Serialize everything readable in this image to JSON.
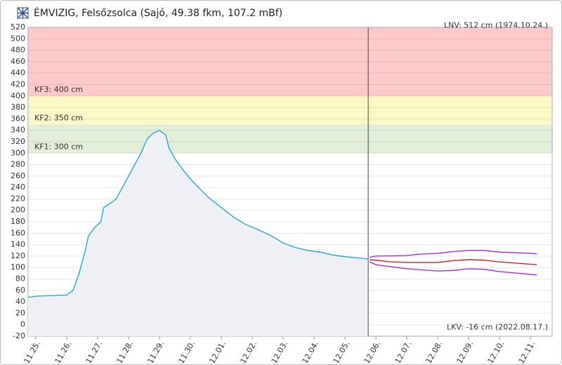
{
  "chart_data": {
    "type": "line",
    "title": "ÉMVIZIG, Felsőzsolca (Sajó, 49.38 fkm, 107.2 mBf)",
    "xlim": [
      -0.25,
      16.7
    ],
    "xticks": [
      {
        "value": 0,
        "label": "11.25."
      },
      {
        "value": 1,
        "label": "11.26."
      },
      {
        "value": 2,
        "label": "11.27."
      },
      {
        "value": 3,
        "label": "11.28."
      },
      {
        "value": 4,
        "label": "11.29."
      },
      {
        "value": 5,
        "label": "11.30."
      },
      {
        "value": 6,
        "label": "12.01."
      },
      {
        "value": 7,
        "label": "12.02."
      },
      {
        "value": 8,
        "label": "12.03."
      },
      {
        "value": 9,
        "label": "12.04."
      },
      {
        "value": 10,
        "label": "12.05."
      },
      {
        "value": 11,
        "label": "12.06."
      },
      {
        "value": 12,
        "label": "12.07."
      },
      {
        "value": 13,
        "label": "12.08."
      },
      {
        "value": 14,
        "label": "12.09."
      },
      {
        "value": 15,
        "label": "12.10."
      },
      {
        "value": 16,
        "label": "12.11."
      }
    ],
    "ylim": [
      -20,
      520
    ],
    "yticks": [
      -20,
      0,
      20,
      40,
      60,
      80,
      100,
      120,
      140,
      160,
      180,
      200,
      220,
      240,
      260,
      280,
      300,
      320,
      340,
      360,
      380,
      400,
      420,
      440,
      460,
      480,
      500,
      520
    ],
    "grid": true,
    "current_x": 10.75,
    "thresholds": [
      {
        "label": "KF1: 300 cm",
        "value": 300,
        "color": "#e3efd9"
      },
      {
        "label": "KF2: 350 cm",
        "value": 350,
        "color": "#fbf8c6"
      },
      {
        "label": "KF3: 400 cm",
        "value": 400,
        "color": "#fdc9c9"
      }
    ],
    "records": [
      {
        "label": "LNV: 512 cm (1974.10.24.)",
        "value": 512
      },
      {
        "label": "LKV: -16 cm (2022.08.17.)",
        "value": -16
      }
    ],
    "series": [
      {
        "color": "#1aa3d4",
        "fill": "#eef0f6",
        "x": [
          -0.25,
          0,
          0.5,
          1.0,
          1.2,
          1.4,
          1.6,
          1.7,
          1.9,
          2.1,
          2.2,
          2.4,
          2.6,
          2.8,
          3.0,
          3.2,
          3.4,
          3.6,
          3.8,
          4.0,
          4.2,
          4.3,
          4.5,
          4.8,
          5.0,
          5.3,
          5.6,
          6.0,
          6.4,
          6.8,
          7.2,
          7.6,
          8.0,
          8.4,
          8.8,
          9.2,
          9.6,
          10.0,
          10.4,
          10.75
        ],
        "values": [
          48,
          50,
          51,
          52,
          60,
          90,
          130,
          155,
          170,
          180,
          205,
          212,
          220,
          240,
          260,
          280,
          300,
          325,
          335,
          340,
          332,
          310,
          290,
          268,
          255,
          238,
          222,
          205,
          188,
          175,
          166,
          156,
          143,
          135,
          130,
          127,
          122,
          119,
          117,
          115
        ]
      },
      {
        "color": "#a020e0",
        "x": [
          10.8,
          11.0,
          12.0,
          12.3,
          13.0,
          13.5,
          14.0,
          14.5,
          15.0,
          16.0,
          16.2
        ],
        "values": [
          118,
          120,
          121,
          123,
          125,
          128,
          130,
          130,
          127,
          125,
          124
        ]
      },
      {
        "color": "#d01010",
        "x": [
          10.8,
          11.5,
          12.0,
          13.0,
          13.5,
          14.0,
          14.5,
          15.0,
          16.2
        ],
        "values": [
          114,
          110,
          109,
          109,
          112,
          114,
          113,
          110,
          105
        ]
      },
      {
        "color": "#a020e0",
        "x": [
          10.8,
          11.0,
          12.0,
          13.0,
          13.5,
          14.0,
          14.5,
          15.0,
          16.2
        ],
        "values": [
          110,
          105,
          98,
          94,
          95,
          98,
          97,
          93,
          87
        ]
      }
    ]
  }
}
